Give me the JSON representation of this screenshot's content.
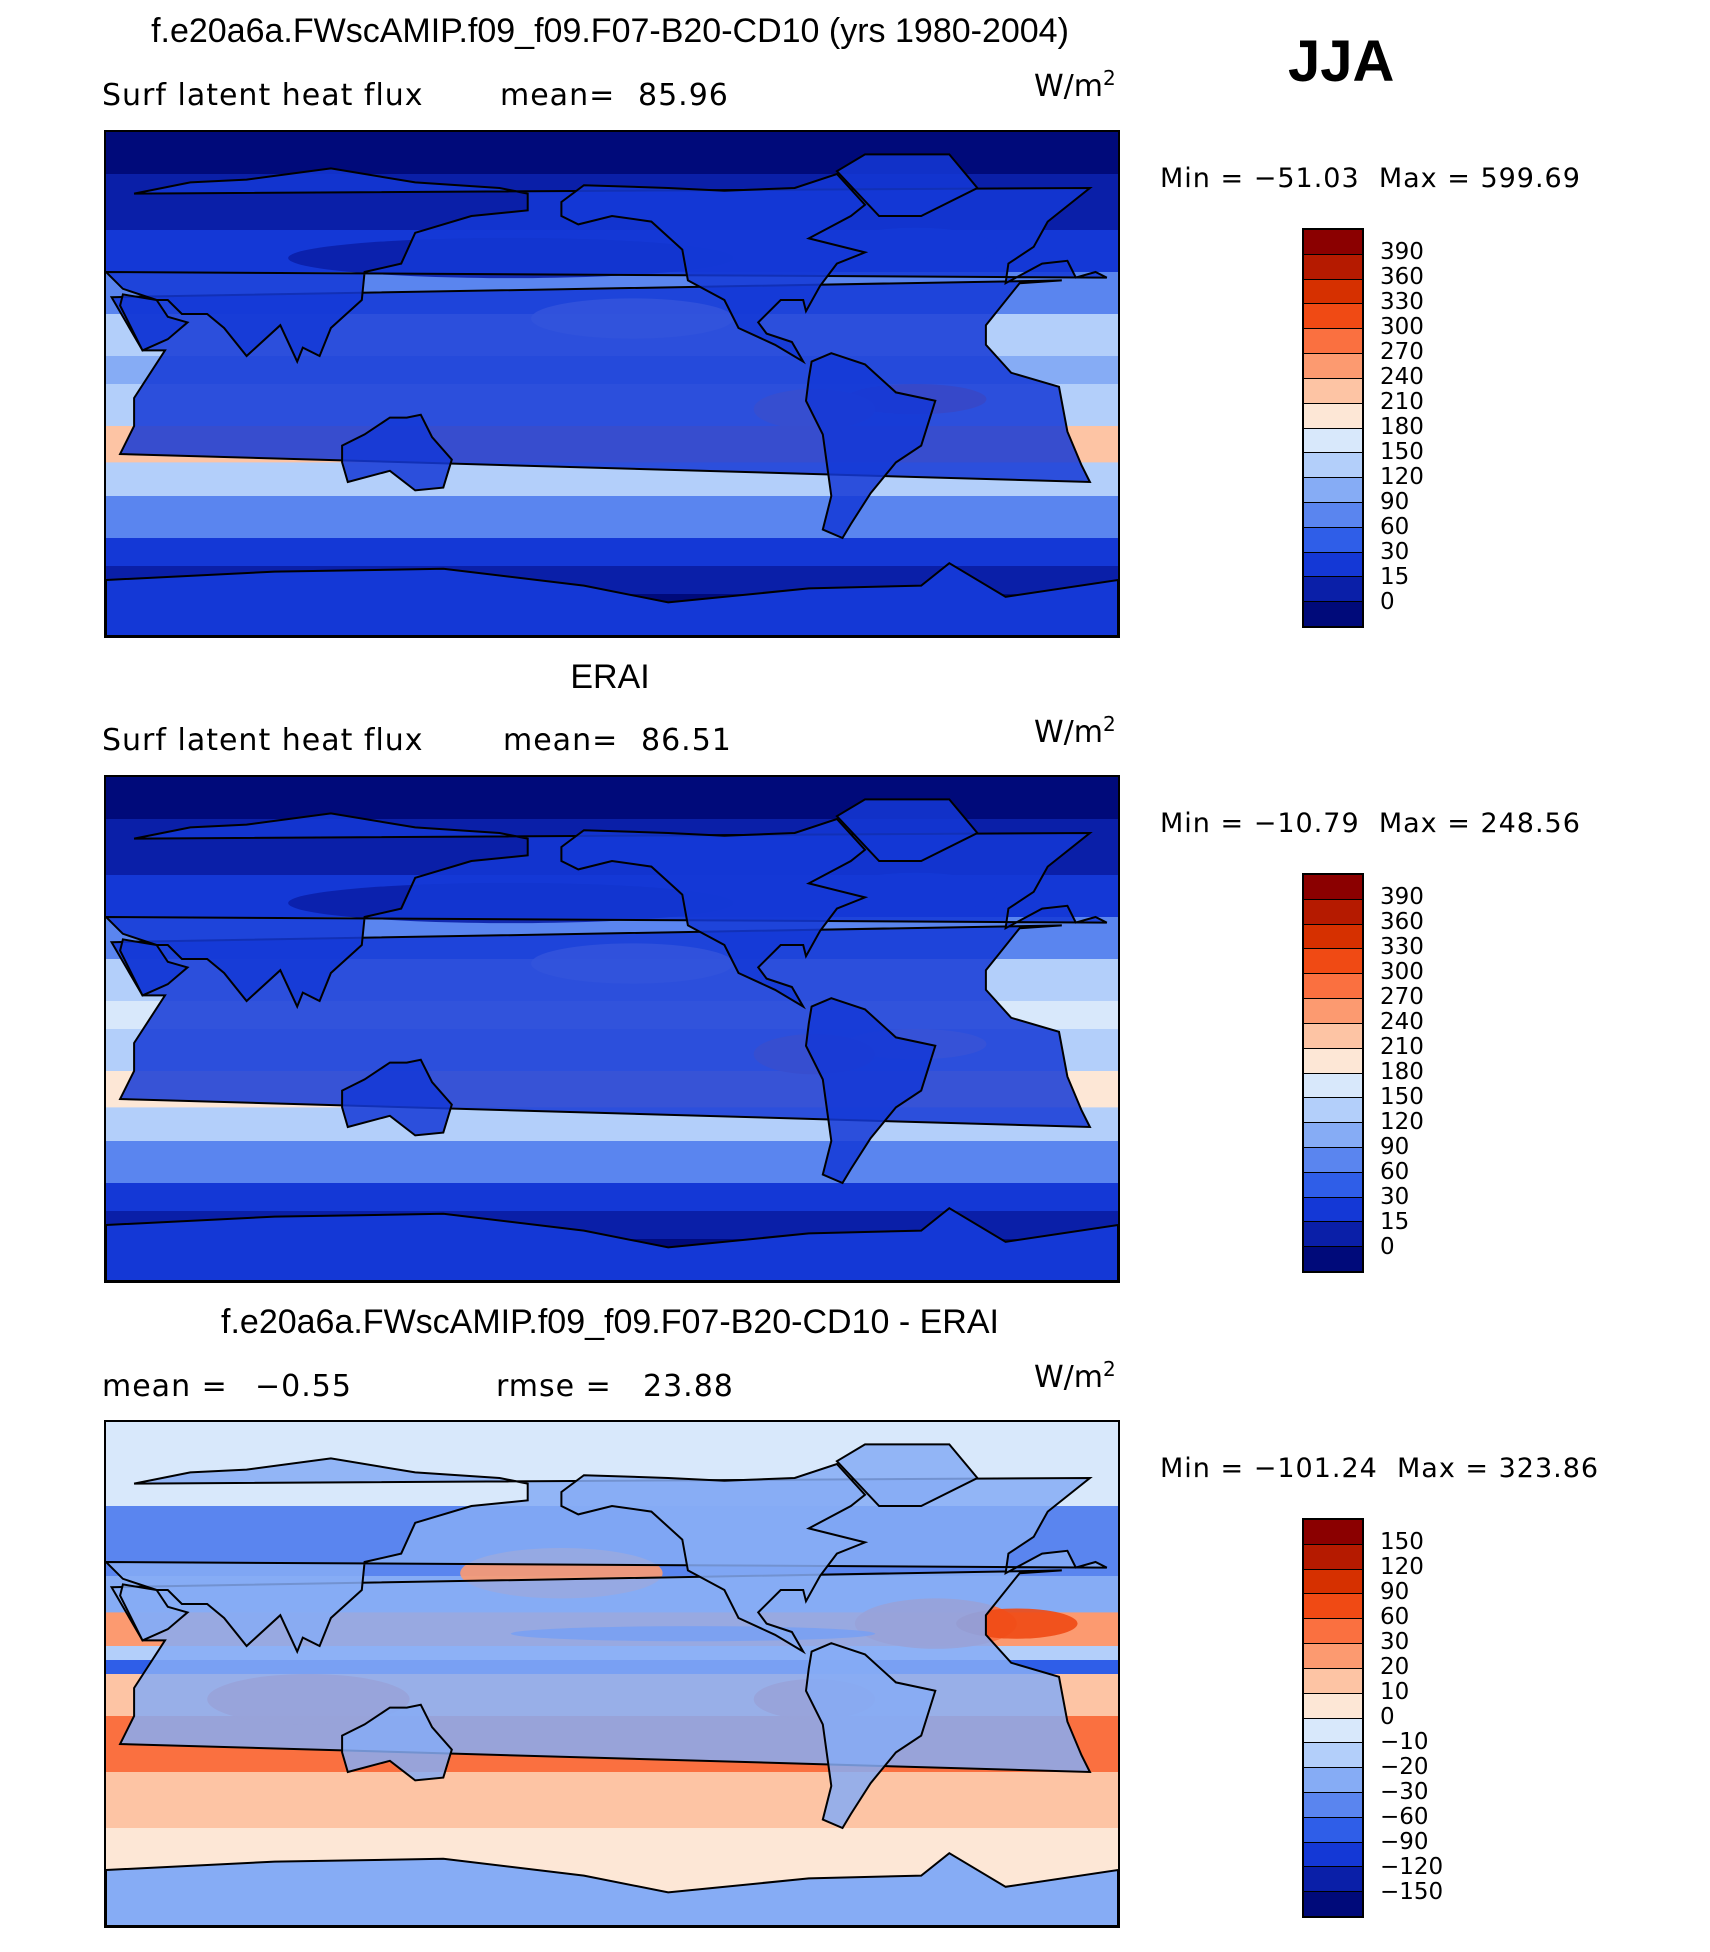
{
  "season": "JJA",
  "units_base": "W/m",
  "units_exp": "2",
  "panels": [
    {
      "title": "f.e20a6a.FWscAMIP.f09_f09.F07-B20-CD10 (yrs 1980-2004)",
      "left_label": "Surf  latent  heat  flux",
      "stat_label": "mean=",
      "stat_value": "85.96",
      "stat2_label": "",
      "stat2_value": "",
      "min_label": "Min  =",
      "min_value": "−51.03",
      "max_label": "Max  =",
      "max_value": "599.69"
    },
    {
      "title": "ERAI",
      "left_label": "Surf  latent  heat  flux",
      "stat_label": "mean=",
      "stat_value": "86.51",
      "stat2_label": "",
      "stat2_value": "",
      "min_label": "Min  =",
      "min_value": "−10.79",
      "max_label": "Max  =",
      "max_value": "248.56"
    },
    {
      "title": "f.e20a6a.FWscAMIP.f09_f09.F07-B20-CD10 - ERAI",
      "left_label": "mean  =",
      "stat_label": "",
      "stat_value": "−0.55",
      "stat2_label": "rmse  =",
      "stat2_value": "23.88",
      "min_label": "Min  =",
      "min_value": "−101.24",
      "max_label": "Max  =",
      "max_value": "323.86"
    }
  ],
  "colorbars": {
    "abs": {
      "labels": [
        "390",
        "360",
        "330",
        "300",
        "270",
        "240",
        "210",
        "180",
        "150",
        "120",
        "90",
        "60",
        "30",
        "15",
        "0"
      ],
      "colors": [
        "#8b0000",
        "#b51a00",
        "#d63000",
        "#f04a14",
        "#fa7040",
        "#fc9a70",
        "#fdc4a4",
        "#fde7d6",
        "#d8e8fb",
        "#b3cffa",
        "#86acf5",
        "#5a85ef",
        "#2f5ee8",
        "#1438d6",
        "#0a1fa8",
        "#000a7a"
      ]
    },
    "diff": {
      "labels": [
        "150",
        "120",
        "90",
        "60",
        "30",
        "20",
        "10",
        "0",
        "−10",
        "−20",
        "−30",
        "−60",
        "−90",
        "−120",
        "−150"
      ],
      "colors": [
        "#8b0000",
        "#b51a00",
        "#d63000",
        "#f04a14",
        "#fa7040",
        "#fc9a70",
        "#fdc4a4",
        "#fde7d6",
        "#d8e8fb",
        "#b3cffa",
        "#86acf5",
        "#5a85ef",
        "#2f5ee8",
        "#1438d6",
        "#0a1fa8",
        "#000a7a"
      ]
    }
  },
  "map_fields": {
    "model": {
      "background": "#1a4fe0",
      "bands": [
        {
          "lat": 90,
          "color": "#000a7a"
        },
        {
          "lat": 75,
          "color": "#0a1fa8"
        },
        {
          "lat": 55,
          "color": "#1438d6"
        },
        {
          "lat": 40,
          "color": "#5a85ef"
        },
        {
          "lat": 25,
          "color": "#b3cffa"
        },
        {
          "lat": 10,
          "color": "#86acf5"
        },
        {
          "lat": 0,
          "color": "#b3cffa"
        },
        {
          "lat": -15,
          "color": "#fdc4a4"
        },
        {
          "lat": -28,
          "color": "#b3cffa"
        },
        {
          "lat": -40,
          "color": "#5a85ef"
        },
        {
          "lat": -55,
          "color": "#1438d6"
        },
        {
          "lat": -65,
          "color": "#0a1fa8"
        },
        {
          "lat": -75,
          "color": "#000a7a"
        }
      ],
      "land": "#1438d6"
    },
    "erai": {
      "bands": [
        {
          "lat": 90,
          "color": "#000a7a"
        },
        {
          "lat": 75,
          "color": "#0a1fa8"
        },
        {
          "lat": 55,
          "color": "#1438d6"
        },
        {
          "lat": 40,
          "color": "#5a85ef"
        },
        {
          "lat": 25,
          "color": "#b3cffa"
        },
        {
          "lat": 10,
          "color": "#d8e8fb"
        },
        {
          "lat": 0,
          "color": "#b3cffa"
        },
        {
          "lat": -15,
          "color": "#fde7d6"
        },
        {
          "lat": -28,
          "color": "#b3cffa"
        },
        {
          "lat": -40,
          "color": "#5a85ef"
        },
        {
          "lat": -55,
          "color": "#1438d6"
        },
        {
          "lat": -65,
          "color": "#0a1fa8"
        },
        {
          "lat": -75,
          "color": "#000a7a"
        }
      ],
      "land": "#1438d6"
    },
    "diff": {
      "bands": [
        {
          "lat": 90,
          "color": "#d8e8fb"
        },
        {
          "lat": 60,
          "color": "#5a85ef"
        },
        {
          "lat": 35,
          "color": "#86acf5"
        },
        {
          "lat": 22,
          "color": "#fc9a70"
        },
        {
          "lat": 10,
          "color": "#b3cffa"
        },
        {
          "lat": 5,
          "color": "#2f5ee8"
        },
        {
          "lat": 0,
          "color": "#fdc4a4"
        },
        {
          "lat": -15,
          "color": "#fa7040"
        },
        {
          "lat": -35,
          "color": "#fdc4a4"
        },
        {
          "lat": -55,
          "color": "#fde7d6"
        },
        {
          "lat": -70,
          "color": "#fde7d6"
        }
      ],
      "land": "#86acf5"
    }
  }
}
